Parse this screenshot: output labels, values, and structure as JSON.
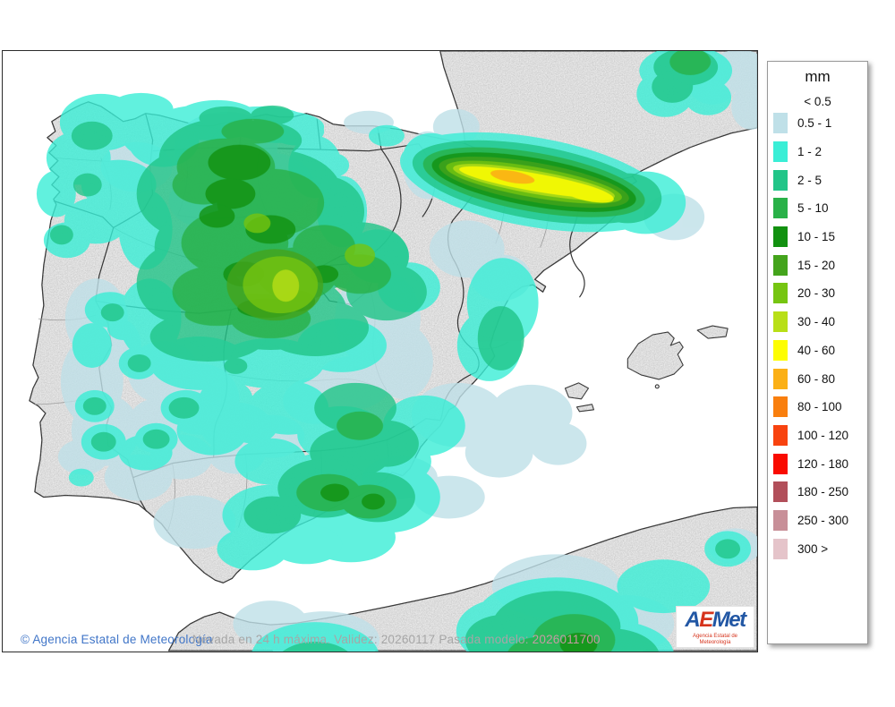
{
  "colors": {
    "sea": "#ffffff",
    "land": "#e9e9e9",
    "frame_border": "#2b2b2b",
    "copyright_blue": "#4176c8",
    "caption_gray": "#a6a6a6",
    "caption_model_pink": "#c79aa4",
    "logo_blue": "#2257a4",
    "logo_red": "#d6331c"
  },
  "legend": {
    "title": "mm",
    "first_label": "< 0.5",
    "entries": [
      {
        "label": "0.5 - 1",
        "color": "#bfe0e8"
      },
      {
        "label": "1 - 2",
        "color": "#3aeed6"
      },
      {
        "label": "2 - 5",
        "color": "#21c588"
      },
      {
        "label": "5 - 10",
        "color": "#29b148"
      },
      {
        "label": "10 - 15",
        "color": "#129110"
      },
      {
        "label": "15 - 20",
        "color": "#44a41c"
      },
      {
        "label": "20 - 30",
        "color": "#76c511"
      },
      {
        "label": "30 - 40",
        "color": "#b8df17"
      },
      {
        "label": "40 - 60",
        "color": "#fdfd02"
      },
      {
        "label": "60 - 80",
        "color": "#fbb016"
      },
      {
        "label": "80 - 100",
        "color": "#f97f0e"
      },
      {
        "label": "100 - 120",
        "color": "#f8430f"
      },
      {
        "label": "120 - 180",
        "color": "#f90b00"
      },
      {
        "label": "180 - 250",
        "color": "#b24f5a"
      },
      {
        "label": "250 - 300",
        "color": "#c88f98"
      },
      {
        "label": "300 >",
        "color": "#e5c4ca"
      }
    ]
  },
  "footer": {
    "copyright": "© Agencia Estatal de Meteorología",
    "caption_main": "Nevada en 24 h máxima. Validez: 20260117 Pasada modelo:",
    "caption_model": "2026011700"
  },
  "logo": {
    "letters": [
      {
        "ch": "A",
        "color": "#2257a4"
      },
      {
        "ch": "E",
        "color": "#d6331c"
      },
      {
        "ch": "M",
        "color": "#2257a4"
      },
      {
        "ch": "e",
        "color": "#2257a4"
      },
      {
        "ch": "t",
        "color": "#2257a4"
      }
    ],
    "subtitle": "Agencia Estatal de Meteorología"
  }
}
